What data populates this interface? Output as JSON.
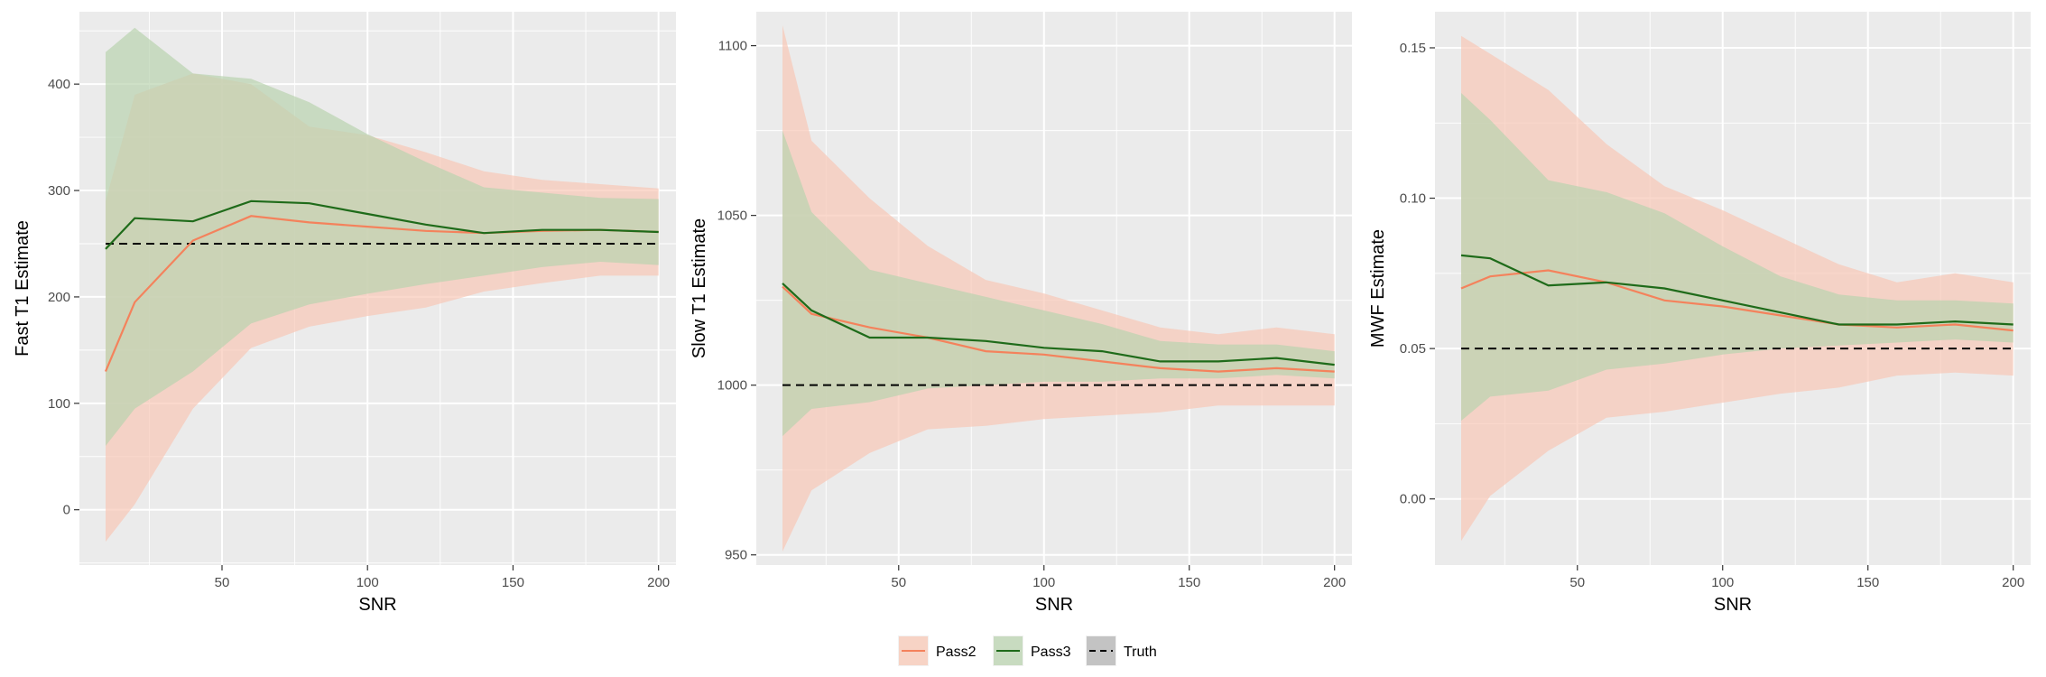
{
  "colors": {
    "panel_bg": "#EBEBEB",
    "grid": "#FFFFFF",
    "tick": "#333333",
    "tick_label": "#4D4D4D",
    "truth": "#000000",
    "legend_key_bg": "#F2F2F2"
  },
  "legend": {
    "position": "bottom",
    "entries": [
      {
        "key": "pass2",
        "label": "Pass2",
        "line_color": "#F4825C",
        "fill_color": "#F8C8B6"
      },
      {
        "key": "pass3",
        "label": "Pass3",
        "line_color": "#1F6B1A",
        "fill_color": "#B9D3AF"
      },
      {
        "key": "truth",
        "label": "Truth",
        "line_color": "#000000",
        "fill_color": "#B3B3B3",
        "dashed": true
      }
    ]
  },
  "chart_data": [
    {
      "type": "area",
      "xlabel": "SNR",
      "ylabel": "Fast T1 Estimate",
      "xlim": [
        1,
        206
      ],
      "ylim": [
        -52,
        468
      ],
      "x_ticks": [
        50,
        100,
        150,
        200
      ],
      "y_ticks": [
        0,
        100,
        200,
        300,
        400
      ],
      "x": [
        10,
        20,
        40,
        60,
        80,
        100,
        120,
        140,
        160,
        180,
        200
      ],
      "truth": 250,
      "series": [
        {
          "name": "Pass2",
          "values": [
            130,
            195,
            253,
            276,
            270,
            266,
            262,
            260,
            262,
            263,
            261
          ],
          "lower": [
            -30,
            5,
            95,
            152,
            172,
            182,
            190,
            205,
            213,
            220,
            220
          ],
          "upper": [
            290,
            390,
            410,
            400,
            360,
            352,
            336,
            318,
            310,
            306,
            302
          ]
        },
        {
          "name": "Pass3",
          "values": [
            245,
            274,
            271,
            290,
            288,
            278,
            268,
            260,
            263,
            263,
            261
          ],
          "lower": [
            60,
            95,
            130,
            175,
            193,
            203,
            212,
            220,
            228,
            233,
            230
          ],
          "upper": [
            430,
            453,
            410,
            405,
            383,
            353,
            327,
            303,
            298,
            293,
            292
          ]
        }
      ]
    },
    {
      "type": "area",
      "xlabel": "SNR",
      "ylabel": "Slow T1 Estimate",
      "xlim": [
        1,
        206
      ],
      "ylim": [
        947,
        1110
      ],
      "x_ticks": [
        50,
        100,
        150,
        200
      ],
      "y_ticks": [
        950,
        1000,
        1050,
        1100
      ],
      "x": [
        10,
        20,
        40,
        60,
        80,
        100,
        120,
        140,
        160,
        180,
        200
      ],
      "truth": 1000,
      "series": [
        {
          "name": "Pass2",
          "values": [
            1029,
            1021,
            1017,
            1014,
            1010,
            1009,
            1007,
            1005,
            1004,
            1005,
            1004
          ],
          "lower": [
            951,
            969,
            980,
            987,
            988,
            990,
            991,
            992,
            994,
            994,
            994
          ],
          "upper": [
            1106,
            1072,
            1055,
            1041,
            1031,
            1027,
            1022,
            1017,
            1015,
            1017,
            1015
          ]
        },
        {
          "name": "Pass3",
          "values": [
            1030,
            1022,
            1014,
            1014,
            1013,
            1011,
            1010,
            1007,
            1007,
            1008,
            1006
          ],
          "lower": [
            985,
            993,
            995,
            999,
            1000,
            1001,
            1001,
            1002,
            1002,
            1003,
            1002
          ],
          "upper": [
            1075,
            1051,
            1034,
            1030,
            1026,
            1022,
            1018,
            1013,
            1012,
            1012,
            1010
          ]
        }
      ]
    },
    {
      "type": "area",
      "xlabel": "SNR",
      "ylabel": "MWF Estimate",
      "xlim": [
        1,
        206
      ],
      "ylim": [
        -0.022,
        0.162
      ],
      "x_ticks": [
        50,
        100,
        150,
        200
      ],
      "y_ticks": [
        0.0,
        0.05,
        0.1,
        0.15
      ],
      "y_tick_labels": [
        "0.00",
        "0.05",
        "0.10",
        "0.15"
      ],
      "x": [
        10,
        20,
        40,
        60,
        80,
        100,
        120,
        140,
        160,
        180,
        200
      ],
      "truth": 0.05,
      "series": [
        {
          "name": "Pass2",
          "values": [
            0.07,
            0.074,
            0.076,
            0.072,
            0.066,
            0.064,
            0.061,
            0.058,
            0.057,
            0.058,
            0.056
          ],
          "lower": [
            -0.014,
            0.001,
            0.016,
            0.027,
            0.029,
            0.032,
            0.035,
            0.037,
            0.041,
            0.042,
            0.041
          ],
          "upper": [
            0.154,
            0.148,
            0.136,
            0.118,
            0.104,
            0.096,
            0.087,
            0.078,
            0.072,
            0.075,
            0.072
          ]
        },
        {
          "name": "Pass3",
          "values": [
            0.081,
            0.08,
            0.071,
            0.072,
            0.07,
            0.066,
            0.062,
            0.058,
            0.058,
            0.059,
            0.058
          ],
          "lower": [
            0.026,
            0.034,
            0.036,
            0.043,
            0.045,
            0.048,
            0.05,
            0.051,
            0.052,
            0.053,
            0.052
          ],
          "upper": [
            0.135,
            0.126,
            0.106,
            0.102,
            0.095,
            0.084,
            0.074,
            0.068,
            0.066,
            0.066,
            0.065
          ]
        }
      ]
    }
  ]
}
